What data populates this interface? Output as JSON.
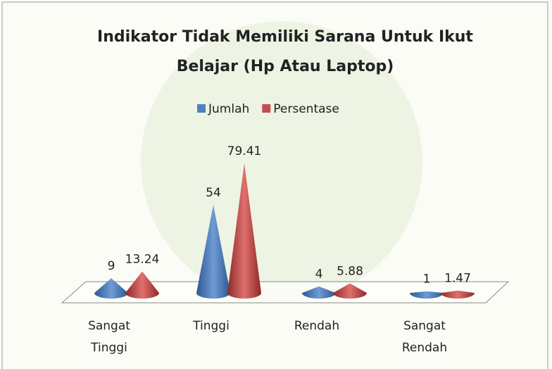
{
  "chart_data": {
    "type": "cone",
    "title": "Indikator Tidak Memiliki Sarana Untuk Ikut Belajar (Hp Atau Laptop)",
    "categories": [
      "Sangat Tinggi",
      "Tinggi",
      "Rendah",
      "Sangat Rendah"
    ],
    "series": [
      {
        "name": "Jumlah",
        "color": "#4f81bd",
        "values": [
          9,
          54,
          4,
          1
        ]
      },
      {
        "name": "Persentase",
        "color": "#c0504d",
        "values": [
          13.24,
          79.41,
          5.88,
          1.47
        ]
      }
    ]
  }
}
